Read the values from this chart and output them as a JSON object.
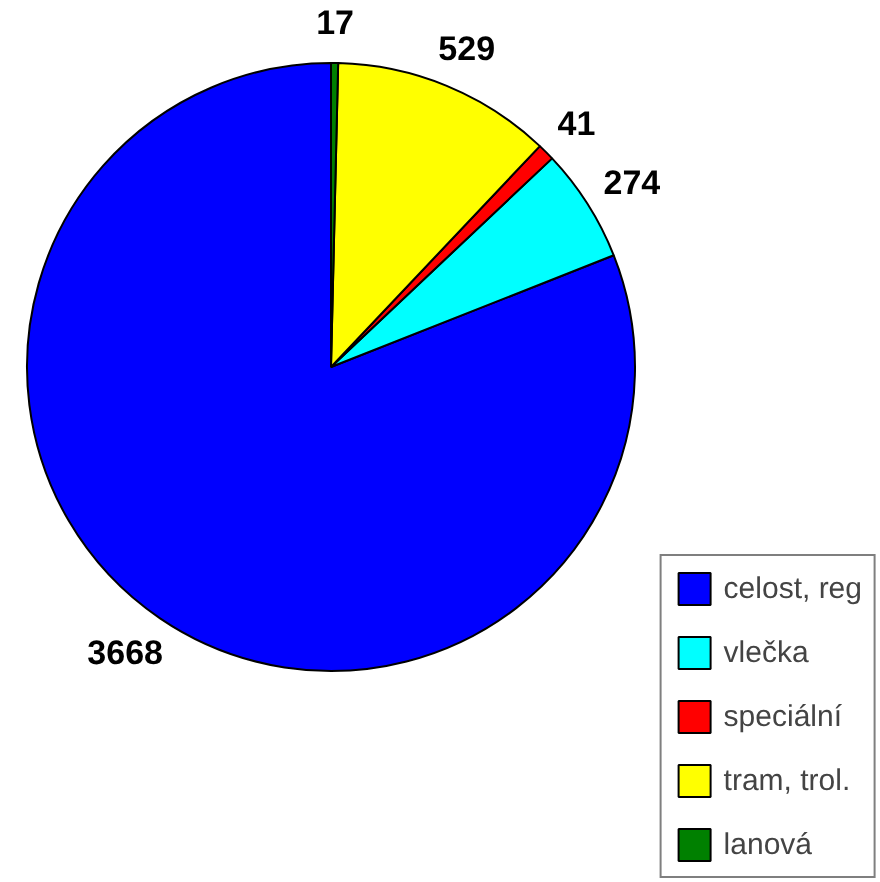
{
  "chart_data": {
    "type": "pie",
    "categories": [
      "celost, reg",
      "vlečka",
      "speciální",
      "tram, trol.",
      "lanová"
    ],
    "values": [
      3668,
      274,
      41,
      529,
      17
    ],
    "colors": [
      "#0000ff",
      "#00ffff",
      "#ff0000",
      "#ffff00",
      "#008000"
    ],
    "data_labels": true,
    "legend": "bottom right"
  }
}
